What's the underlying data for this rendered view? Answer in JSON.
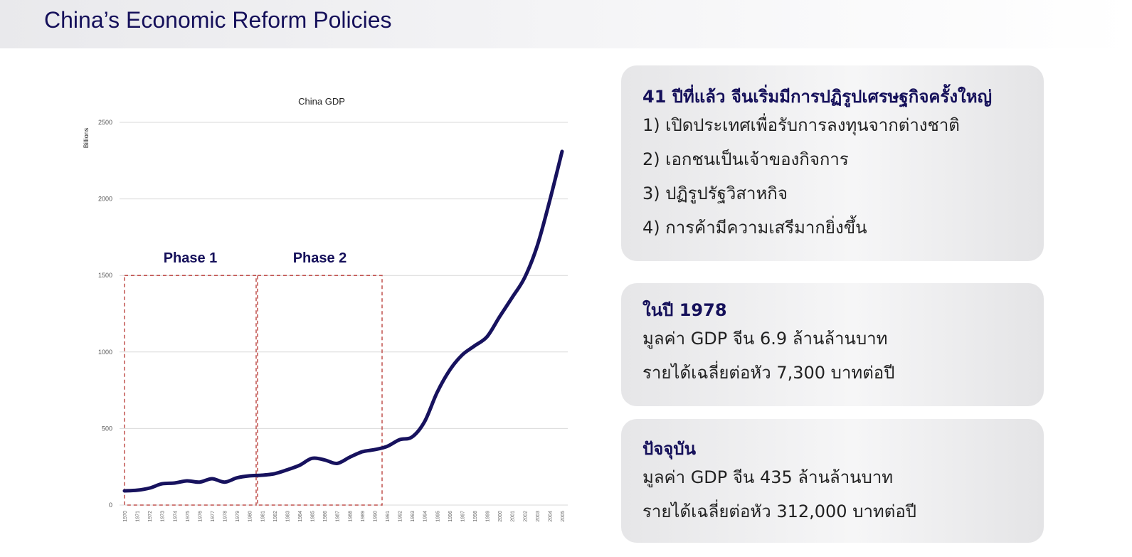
{
  "header": {
    "title": "China’s Economic Reform Policies"
  },
  "panels": [
    {
      "heading": "41 ปีที่แล้ว จีนเริ่มมีการปฏิรูปเศรษฐกิจครั้งใหญ่",
      "lines": [
        "1) เปิดประเทศเพื่อรับการลงทุนจากต่างชาติ",
        "2) เอกชนเป็นเจ้าของกิจการ",
        "3) ปฏิรูปรัฐวิสาหกิจ",
        "4) การค้ามีความเสรีมากยิ่งขึ้น"
      ]
    },
    {
      "heading": "ในปี 1978",
      "lines": [
        "มูลค่า GDP จีน 6.9 ล้านล้านบาท",
        "รายได้เฉลี่ยต่อหัว 7,300 บาทต่อปี"
      ]
    },
    {
      "heading": "ปัจจุบัน",
      "lines": [
        "มูลค่า GDP จีน 435 ล้านล้านบาท",
        "รายได้เฉลี่ยต่อหัว 312,000 บาทต่อปี"
      ]
    }
  ],
  "chart_data": {
    "type": "line",
    "title": "China GDP",
    "xlabel": "",
    "ylabel": "Billions",
    "ylim": [
      0,
      2500
    ],
    "yticks": [
      0,
      500,
      1000,
      1500,
      2000,
      2500
    ],
    "grid": true,
    "line_color": "#17125e",
    "x": [
      1970,
      1971,
      1972,
      1973,
      1974,
      1975,
      1976,
      1977,
      1978,
      1979,
      1980,
      1981,
      1982,
      1983,
      1984,
      1985,
      1986,
      1987,
      1988,
      1989,
      1990,
      1991,
      1992,
      1993,
      1994,
      1995,
      1996,
      1997,
      1998,
      1999,
      2000,
      2001,
      2002,
      2003,
      2004,
      2005
    ],
    "values": [
      93,
      97,
      111,
      139,
      144,
      158,
      150,
      172,
      150,
      178,
      191,
      195,
      205,
      230,
      260,
      305,
      295,
      272,
      312,
      348,
      362,
      383,
      427,
      445,
      545,
      735,
      880,
      980,
      1040,
      1100,
      1230,
      1355,
      1485,
      1690,
      1985,
      2310
    ],
    "annotations": [
      {
        "label": "Phase 1",
        "x_range": [
          1970,
          1980
        ],
        "y_top": 1500,
        "color": "#c0504d"
      },
      {
        "label": "Phase 2",
        "x_range": [
          1981,
          1990
        ],
        "y_top": 1500,
        "color": "#c0504d"
      }
    ]
  }
}
